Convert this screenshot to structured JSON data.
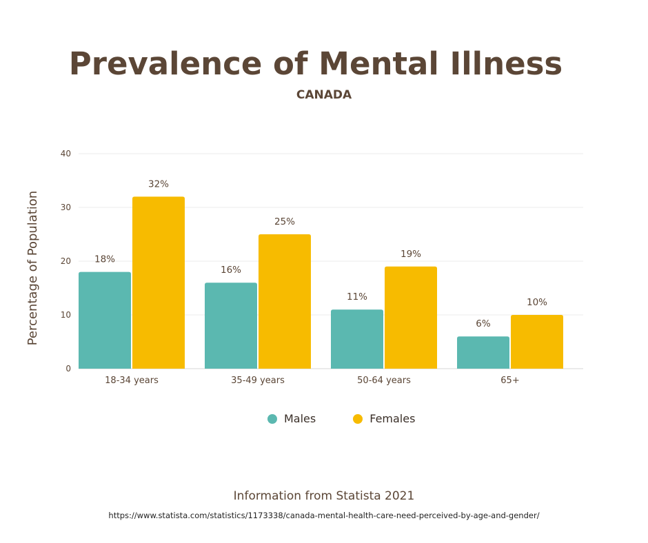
{
  "header": {
    "title": "Prevalence of Mental Illness",
    "subtitle": "CANADA"
  },
  "footer": {
    "source": "Information from Statista 2021",
    "url": "https://www.statista.com/statistics/1173338/canada-mental-health-care-need-perceived-by-age-and-gender/"
  },
  "chart_data": {
    "type": "bar",
    "title": "Prevalence of Mental Illness",
    "subtitle": "CANADA",
    "xlabel": "",
    "ylabel": "Percentage of Population",
    "ylim": [
      0,
      40
    ],
    "yticks": [
      0,
      10,
      20,
      30,
      40
    ],
    "grid": true,
    "legend_position": "bottom",
    "categories": [
      "18-34 years",
      "35-49 years",
      "50-64 years",
      "65+"
    ],
    "series": [
      {
        "name": "Males",
        "color": "#5bb8b0",
        "values": [
          18,
          16,
          11,
          6
        ],
        "labels": [
          "18%",
          "16%",
          "11%",
          "6%"
        ]
      },
      {
        "name": "Females",
        "color": "#f7bb00",
        "values": [
          32,
          25,
          19,
          10
        ],
        "labels": [
          "32%",
          "25%",
          "19%",
          "10%"
        ]
      }
    ]
  }
}
